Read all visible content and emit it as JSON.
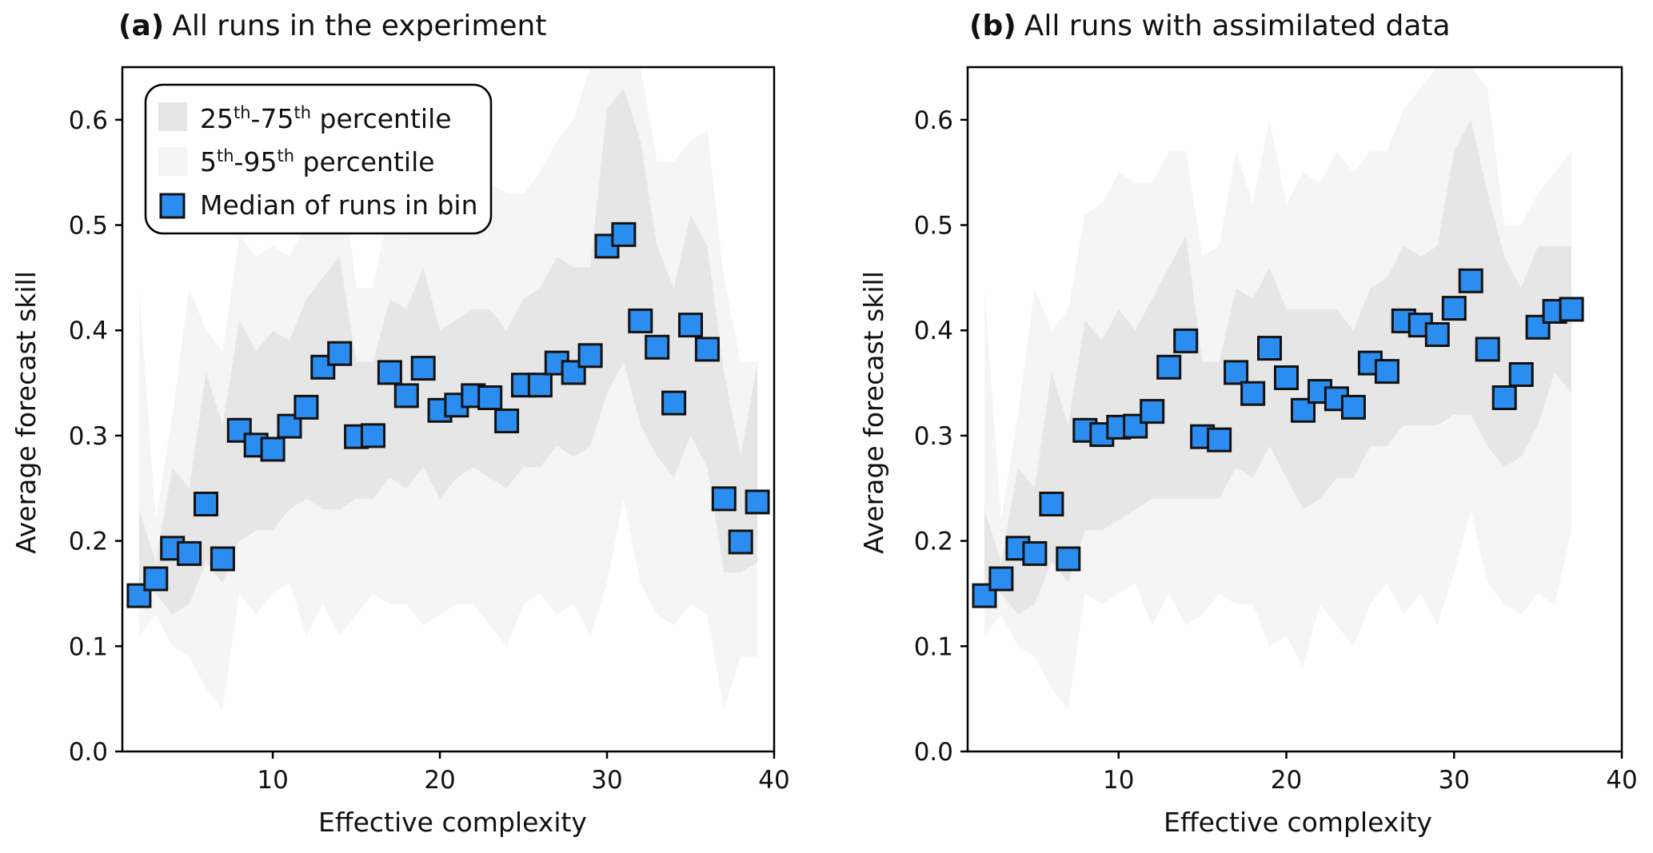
{
  "colors": {
    "band_inner": "#e6e6e6",
    "band_outer": "#f5f5f5",
    "marker_fill": "#2b8df0",
    "marker_edge": "#111111",
    "axis": "#000000"
  },
  "legend": {
    "band_inner_label": "25th-75th percentile",
    "band_inner_parts": {
      "a": "25",
      "a_sup": "th",
      "sep": "-",
      "b": "75",
      "b_sup": "th",
      "rest": " percentile"
    },
    "band_outer_label": "5th-95th percentile",
    "band_outer_parts": {
      "a": "5",
      "a_sup": "th",
      "sep": "-",
      "b": "95",
      "b_sup": "th",
      "rest": " percentile"
    },
    "marker_label": "Median of runs in bin"
  },
  "chart_data": [
    {
      "type": "scatter",
      "panel_letter": "(a)",
      "title": "All runs in the experiment",
      "xlabel": "Effective complexity",
      "ylabel": "Average forecast skill",
      "xlim": [
        1,
        40
      ],
      "ylim": [
        0,
        0.65
      ],
      "xticks": [
        10,
        20,
        30,
        40
      ],
      "yticks": [
        0.0,
        0.1,
        0.2,
        0.3,
        0.4,
        0.5,
        0.6
      ],
      "legend": true,
      "x": [
        2,
        3,
        4,
        5,
        6,
        7,
        8,
        9,
        10,
        11,
        12,
        13,
        14,
        15,
        16,
        17,
        18,
        19,
        20,
        21,
        22,
        23,
        24,
        25,
        26,
        27,
        28,
        29,
        30,
        31,
        32,
        33,
        34,
        35,
        36,
        37,
        38,
        39
      ],
      "median": [
        0.148,
        0.164,
        0.193,
        0.188,
        0.235,
        0.183,
        0.305,
        0.291,
        0.287,
        0.309,
        0.327,
        0.365,
        0.378,
        0.299,
        0.3,
        0.36,
        0.338,
        0.364,
        0.324,
        0.329,
        0.338,
        0.336,
        0.314,
        0.348,
        0.348,
        0.369,
        0.36,
        0.376,
        0.48,
        0.491,
        0.409,
        0.384,
        0.331,
        0.405,
        0.382,
        0.24,
        0.199,
        0.237
      ],
      "p25": [
        0.16,
        0.15,
        0.13,
        0.14,
        0.18,
        0.16,
        0.2,
        0.21,
        0.21,
        0.23,
        0.24,
        0.23,
        0.23,
        0.24,
        0.24,
        0.26,
        0.25,
        0.27,
        0.24,
        0.26,
        0.27,
        0.26,
        0.25,
        0.27,
        0.27,
        0.29,
        0.28,
        0.29,
        0.34,
        0.37,
        0.31,
        0.28,
        0.26,
        0.3,
        0.27,
        0.17,
        0.17,
        0.18
      ],
      "p75": [
        0.23,
        0.18,
        0.27,
        0.25,
        0.36,
        0.31,
        0.41,
        0.38,
        0.4,
        0.39,
        0.43,
        0.45,
        0.47,
        0.37,
        0.37,
        0.43,
        0.42,
        0.46,
        0.4,
        0.41,
        0.42,
        0.42,
        0.4,
        0.43,
        0.44,
        0.47,
        0.46,
        0.46,
        0.61,
        0.63,
        0.58,
        0.48,
        0.44,
        0.51,
        0.48,
        0.36,
        0.28,
        0.37
      ],
      "p5": [
        0.11,
        0.13,
        0.1,
        0.09,
        0.06,
        0.04,
        0.15,
        0.13,
        0.15,
        0.16,
        0.11,
        0.14,
        0.11,
        0.13,
        0.15,
        0.14,
        0.14,
        0.12,
        0.13,
        0.14,
        0.14,
        0.12,
        0.1,
        0.14,
        0.15,
        0.13,
        0.14,
        0.11,
        0.16,
        0.24,
        0.16,
        0.13,
        0.12,
        0.14,
        0.13,
        0.04,
        0.09,
        0.09
      ],
      "p95": [
        0.44,
        0.22,
        0.32,
        0.44,
        0.4,
        0.38,
        0.49,
        0.47,
        0.48,
        0.47,
        0.5,
        0.56,
        0.57,
        0.44,
        0.44,
        0.52,
        0.49,
        0.55,
        0.5,
        0.53,
        0.52,
        0.54,
        0.53,
        0.53,
        0.55,
        0.58,
        0.6,
        0.65,
        0.65,
        0.65,
        0.65,
        0.56,
        0.56,
        0.58,
        0.59,
        0.45,
        0.37,
        0.37
      ]
    },
    {
      "type": "scatter",
      "panel_letter": "(b)",
      "title": "All runs with assimilated data",
      "xlabel": "Effective complexity",
      "ylabel": "Average forecast skill",
      "xlim": [
        1,
        40
      ],
      "ylim": [
        0,
        0.65
      ],
      "xticks": [
        10,
        20,
        30,
        40
      ],
      "yticks": [
        0.0,
        0.1,
        0.2,
        0.3,
        0.4,
        0.5,
        0.6
      ],
      "legend": false,
      "x": [
        2,
        3,
        4,
        5,
        6,
        7,
        8,
        9,
        10,
        11,
        12,
        13,
        14,
        15,
        16,
        17,
        18,
        19,
        20,
        21,
        22,
        23,
        24,
        25,
        26,
        27,
        28,
        29,
        30,
        31,
        32,
        33,
        34,
        35,
        36,
        37
      ],
      "median": [
        0.148,
        0.164,
        0.193,
        0.188,
        0.235,
        0.183,
        0.305,
        0.301,
        0.308,
        0.309,
        0.323,
        0.365,
        0.39,
        0.299,
        0.296,
        0.36,
        0.34,
        0.383,
        0.355,
        0.324,
        0.342,
        0.335,
        0.327,
        0.369,
        0.361,
        0.409,
        0.405,
        0.396,
        0.421,
        0.447,
        0.382,
        0.336,
        0.358,
        0.403,
        0.418,
        0.42
      ],
      "p25": [
        0.16,
        0.15,
        0.13,
        0.14,
        0.18,
        0.16,
        0.21,
        0.21,
        0.22,
        0.23,
        0.24,
        0.24,
        0.24,
        0.24,
        0.24,
        0.27,
        0.26,
        0.29,
        0.26,
        0.23,
        0.24,
        0.26,
        0.26,
        0.29,
        0.29,
        0.31,
        0.31,
        0.31,
        0.32,
        0.32,
        0.29,
        0.27,
        0.28,
        0.31,
        0.36,
        0.34
      ],
      "p75": [
        0.23,
        0.18,
        0.27,
        0.25,
        0.36,
        0.31,
        0.41,
        0.39,
        0.42,
        0.4,
        0.43,
        0.46,
        0.49,
        0.37,
        0.37,
        0.44,
        0.43,
        0.46,
        0.42,
        0.42,
        0.42,
        0.42,
        0.4,
        0.44,
        0.45,
        0.48,
        0.47,
        0.48,
        0.57,
        0.6,
        0.53,
        0.47,
        0.44,
        0.48,
        0.48,
        0.48
      ],
      "p5": [
        0.11,
        0.13,
        0.1,
        0.09,
        0.06,
        0.04,
        0.15,
        0.14,
        0.15,
        0.16,
        0.12,
        0.15,
        0.12,
        0.13,
        0.15,
        0.14,
        0.14,
        0.1,
        0.11,
        0.08,
        0.14,
        0.12,
        0.1,
        0.14,
        0.16,
        0.13,
        0.15,
        0.12,
        0.17,
        0.23,
        0.16,
        0.14,
        0.13,
        0.15,
        0.14,
        0.21
      ],
      "p95": [
        0.44,
        0.22,
        0.32,
        0.44,
        0.4,
        0.42,
        0.51,
        0.52,
        0.55,
        0.54,
        0.54,
        0.57,
        0.57,
        0.47,
        0.48,
        0.57,
        0.52,
        0.6,
        0.52,
        0.55,
        0.54,
        0.57,
        0.55,
        0.57,
        0.57,
        0.61,
        0.63,
        0.65,
        0.65,
        0.65,
        0.63,
        0.5,
        0.5,
        0.53,
        0.55,
        0.57
      ]
    }
  ]
}
